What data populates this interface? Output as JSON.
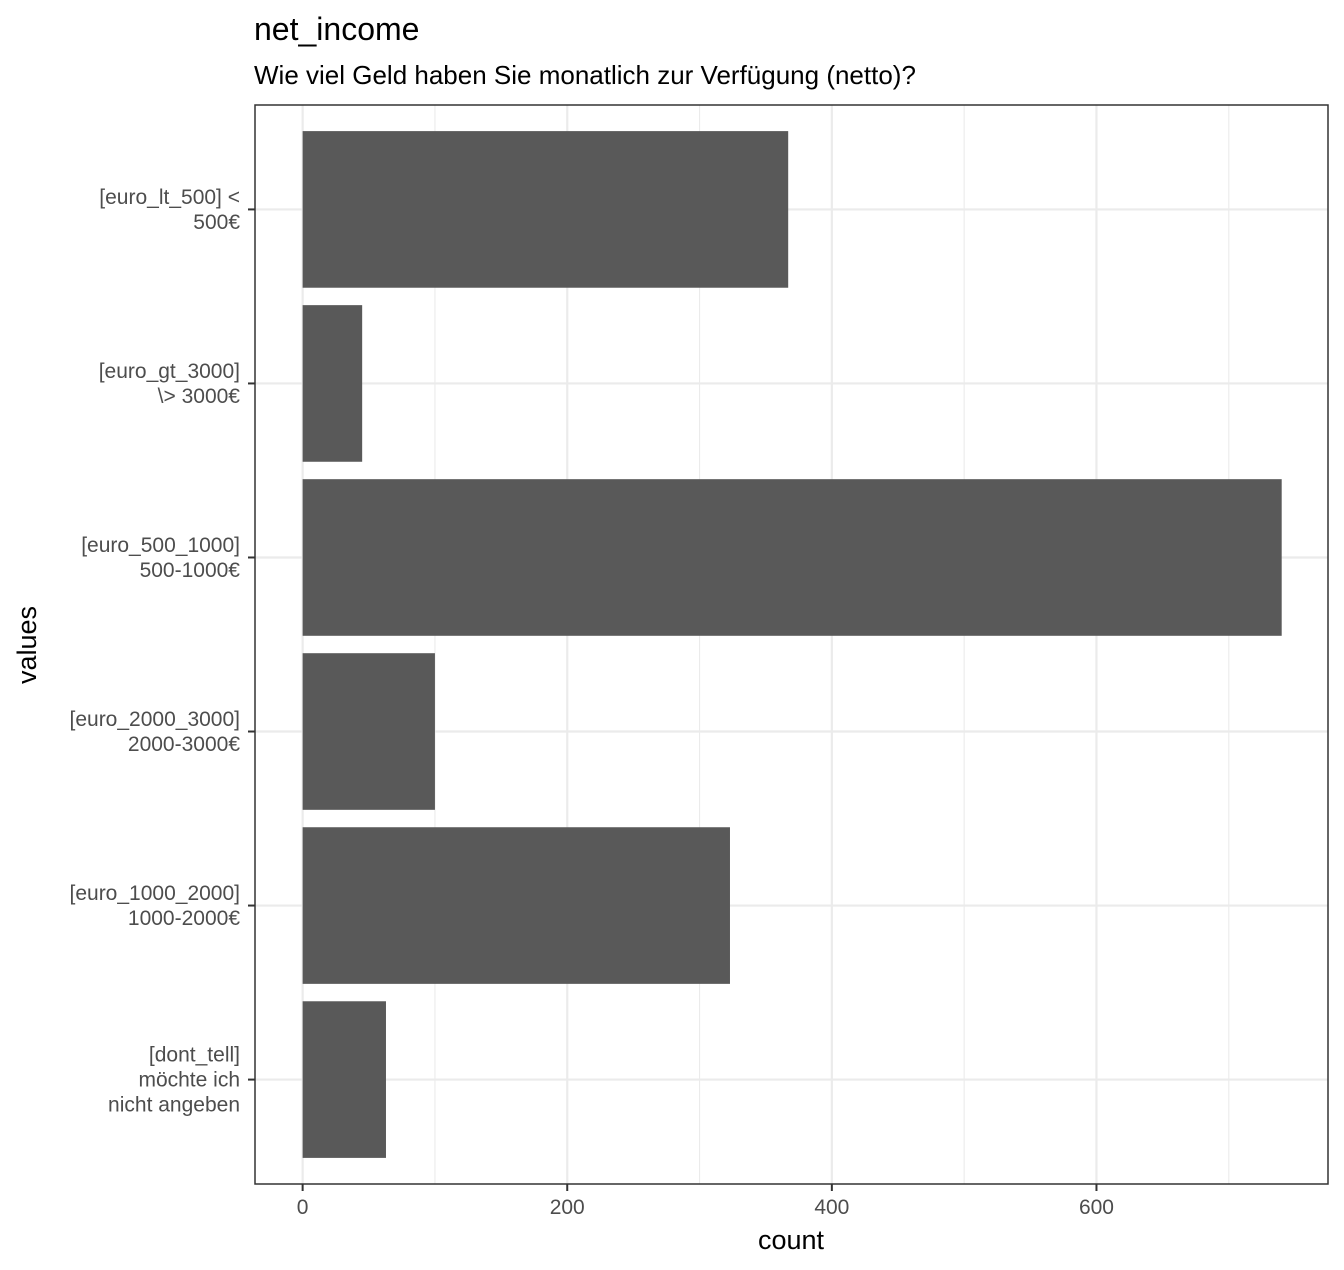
{
  "chart_data": {
    "type": "bar",
    "orientation": "horizontal",
    "title": "net_income",
    "subtitle": "Wie viel Geld haben Sie monatlich zur Verfügung (netto)?",
    "xlabel": "count",
    "ylabel": "values",
    "xlim": [
      -36,
      775
    ],
    "x_ticks": [
      0,
      200,
      400,
      600
    ],
    "grid": true,
    "categories": [
      [
        "[euro_lt_500] <",
        "500€"
      ],
      [
        "[euro_gt_3000]",
        "\\> 3000€"
      ],
      [
        "[euro_500_1000]",
        "500-1000€"
      ],
      [
        "[euro_2000_3000]",
        "2000-3000€"
      ],
      [
        "[euro_1000_2000]",
        "1000-2000€"
      ],
      [
        "[dont_tell]",
        "möchte ich",
        "nicht angeben"
      ]
    ],
    "values": [
      367,
      45,
      740,
      100,
      323,
      63
    ],
    "bar_color": "#595959"
  }
}
